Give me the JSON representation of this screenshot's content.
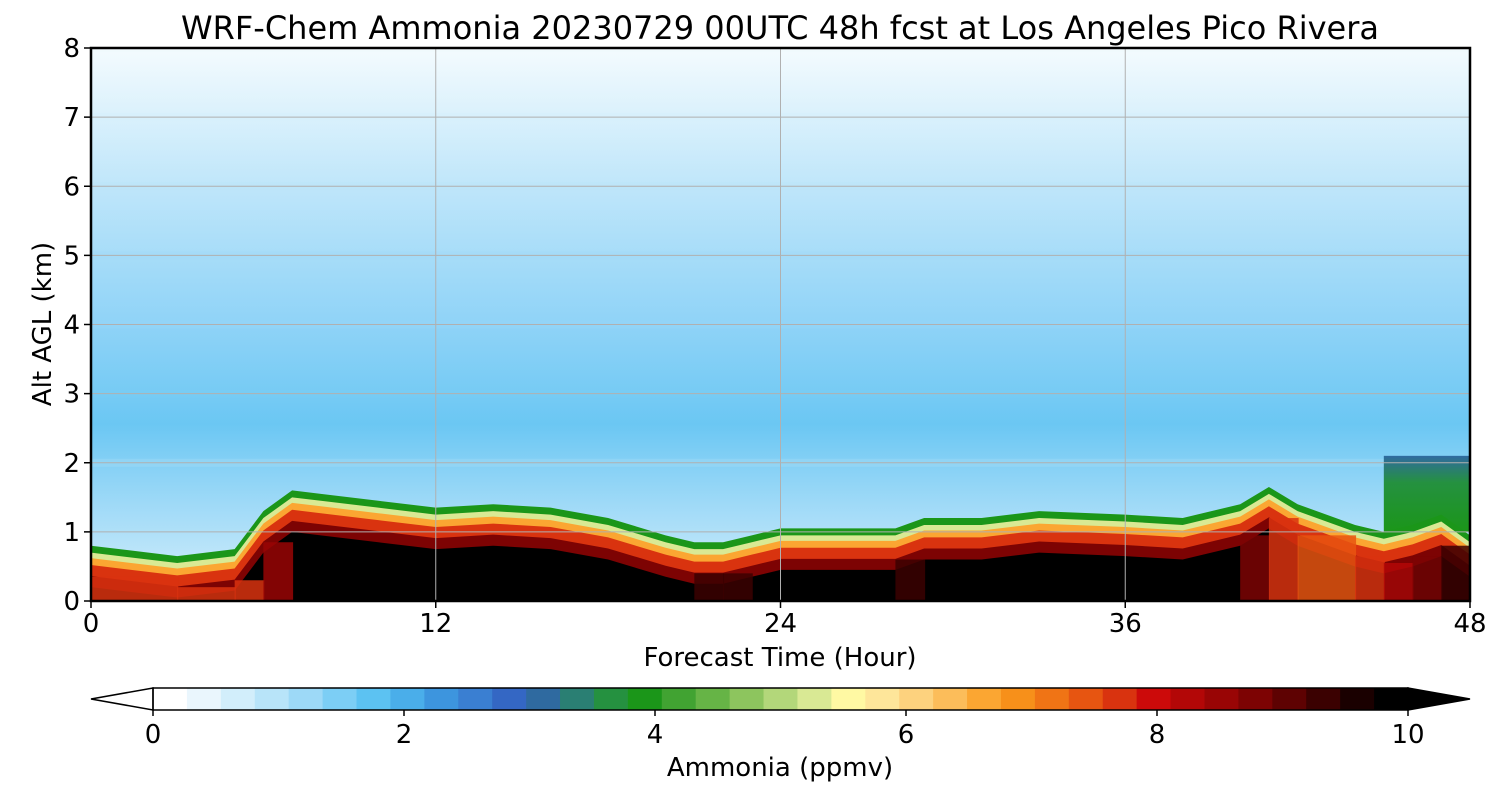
{
  "chart_data": {
    "type": "heatmap",
    "title": "WRF-Chem Ammonia  20230729 00UTC 48h fcst at Los Angeles Pico Rivera",
    "xlabel": "Forecast Time (Hour)",
    "ylabel": "Alt AGL (km)",
    "xlim": [
      0,
      48
    ],
    "ylim": [
      0,
      8
    ],
    "x_ticks": [
      "0",
      "12",
      "24",
      "36",
      "48"
    ],
    "y_ticks": [
      "0",
      "1",
      "2",
      "3",
      "4",
      "5",
      "6",
      "7",
      "8"
    ],
    "grid": true,
    "colorbar": {
      "label": "Ammonia  (ppmv)",
      "range": [
        0,
        10
      ],
      "ticks": [
        "0",
        "2",
        "4",
        "6",
        "8",
        "10"
      ],
      "extend": "both",
      "colors": [
        "#ffffff",
        "#eaf6fd",
        "#d2eefb",
        "#b8e4f9",
        "#9dd9f7",
        "#7ccef5",
        "#5cc2f2",
        "#4aaeea",
        "#3d95de",
        "#3a7fd2",
        "#3467c4",
        "#2f6aa0",
        "#2a7f73",
        "#259140",
        "#1b9619",
        "#41a332",
        "#66b446",
        "#8dc55e",
        "#b3d77a",
        "#d9e994",
        "#fff9a3",
        "#fee69a",
        "#fdd27e",
        "#fcbd5a",
        "#fba632",
        "#f7901a",
        "#f07415",
        "#e75511",
        "#d9330f",
        "#cc0a0a",
        "#b30707",
        "#990505",
        "#7d0303",
        "#5e0202",
        "#3b0101",
        "#1a0000",
        "#000000"
      ]
    },
    "time_hours": [
      0,
      3,
      5,
      6,
      7,
      8,
      10,
      12,
      14,
      16,
      18,
      20,
      21,
      22,
      23,
      24,
      26,
      28,
      29,
      31,
      33,
      36,
      38,
      40,
      41,
      42,
      44,
      45,
      46,
      47,
      48
    ],
    "layer_top_km": [
      0.7,
      0.55,
      0.65,
      1.2,
      1.5,
      1.45,
      1.35,
      1.25,
      1.3,
      1.25,
      1.1,
      0.85,
      0.75,
      0.75,
      0.85,
      0.95,
      0.95,
      0.95,
      1.1,
      1.1,
      1.2,
      1.15,
      1.1,
      1.3,
      1.55,
      1.3,
      1.0,
      0.9,
      1.0,
      1.15,
      0.85
    ],
    "surface_max_ppmv": [
      7.8,
      7.7,
      7.9,
      8.5,
      9.5,
      10,
      10,
      10,
      9.8,
      9.8,
      9.9,
      9.8,
      9.4,
      9.4,
      9.6,
      9.6,
      9.5,
      9.4,
      9.8,
      10,
      10,
      10,
      9.5,
      8.8,
      7.8,
      7.5,
      7.8,
      8.2,
      9.0,
      9.4,
      8.8
    ],
    "upper_profile_ppmv": [
      {
        "alt_km": 2.0,
        "value": 0.9
      },
      {
        "alt_km": 3.0,
        "value": 1.3
      },
      {
        "alt_km": 4.0,
        "value": 1.2
      },
      {
        "alt_km": 5.0,
        "value": 1.0
      },
      {
        "alt_km": 6.0,
        "value": 0.8
      },
      {
        "alt_km": 7.0,
        "value": 0.6
      },
      {
        "alt_km": 8.0,
        "value": 0.4
      }
    ],
    "green_patch": {
      "hours": [
        45,
        48
      ],
      "alt_km": [
        1.0,
        2.1
      ],
      "value": 3.8
    }
  }
}
